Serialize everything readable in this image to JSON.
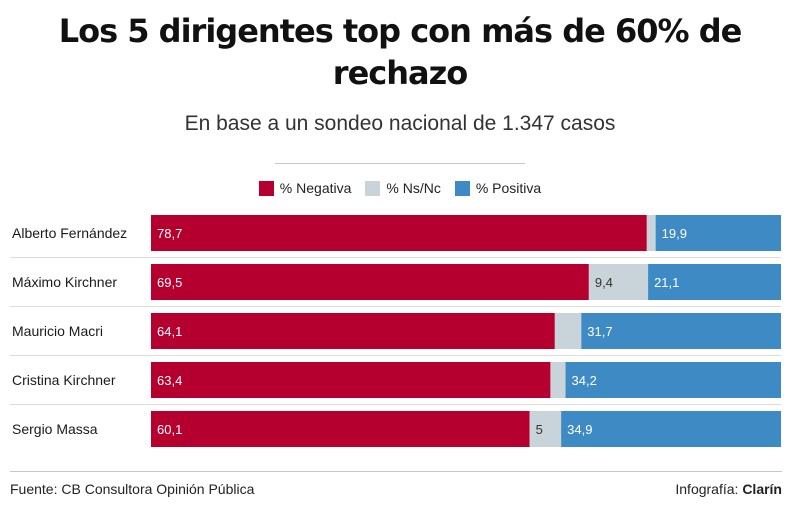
{
  "title": "Los 5 dirigentes top con más de 60% de rechazo",
  "subtitle": "En base a un sondeo nacional de 1.347 casos",
  "footer": {
    "source": "Fuente: CB Consultora Opinión Pública",
    "credit_prefix": "Infografía: ",
    "credit_brand": "Clarín"
  },
  "chart_data": {
    "type": "bar",
    "orientation": "horizontal",
    "stacked": true,
    "title": "Los 5 dirigentes top con más de 60% de rechazo",
    "subtitle": "En base a un sondeo nacional de 1.347 casos",
    "categories": [
      "Alberto Fernández",
      "Máximo Kirchner",
      "Mauricio Macri",
      "Cristina Kirchner",
      "Sergio Massa"
    ],
    "series": [
      {
        "name": "% Negativa",
        "color": "#b5002f",
        "values": [
          78.7,
          69.5,
          64.1,
          63.4,
          60.1
        ],
        "labels": [
          "78,7",
          "69,5",
          "64,1",
          "63,4",
          "60,1"
        ]
      },
      {
        "name": "% Ns/Nc",
        "color": "#c9d3da",
        "values": [
          1.4,
          9.4,
          4.2,
          2.4,
          5
        ],
        "labels": [
          "",
          "9,4",
          "",
          "",
          "5"
        ]
      },
      {
        "name": "% Positiva",
        "color": "#3d8ac4",
        "values": [
          19.9,
          21.1,
          31.7,
          34.2,
          34.9
        ],
        "labels": [
          "19,9",
          "21,1",
          "31,7",
          "34,2",
          "34,9"
        ]
      }
    ],
    "legend": "top-center",
    "grid": false,
    "xlim": [
      0,
      100
    ]
  }
}
